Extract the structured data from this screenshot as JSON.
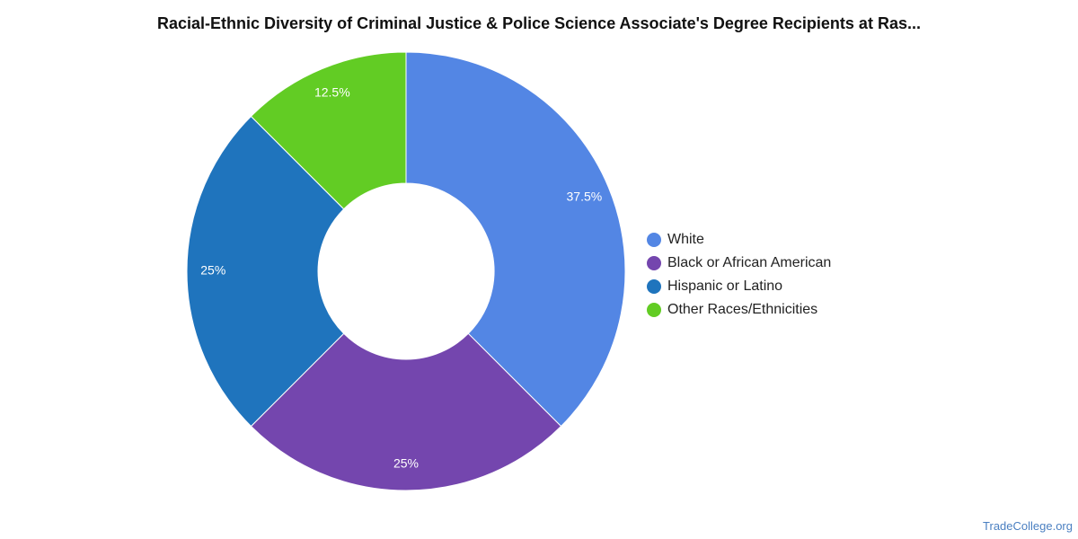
{
  "chart_data": {
    "type": "pie",
    "donut": true,
    "title": "Racial-Ethnic Diversity of Criminal Justice & Police Science Associate's Degree Recipients at Ras...",
    "categories": [
      "White",
      "Black or African American",
      "Hispanic or Latino",
      "Other Races/Ethnicities"
    ],
    "values": [
      37.5,
      25,
      25,
      12.5
    ],
    "labels": [
      "37.5%",
      "25%",
      "25%",
      "12.5%"
    ],
    "colors": [
      "#5386e4",
      "#7446ae",
      "#1f74bd",
      "#62cc24"
    ],
    "legend_position": "right"
  },
  "watermark": "TradeCollege.org"
}
